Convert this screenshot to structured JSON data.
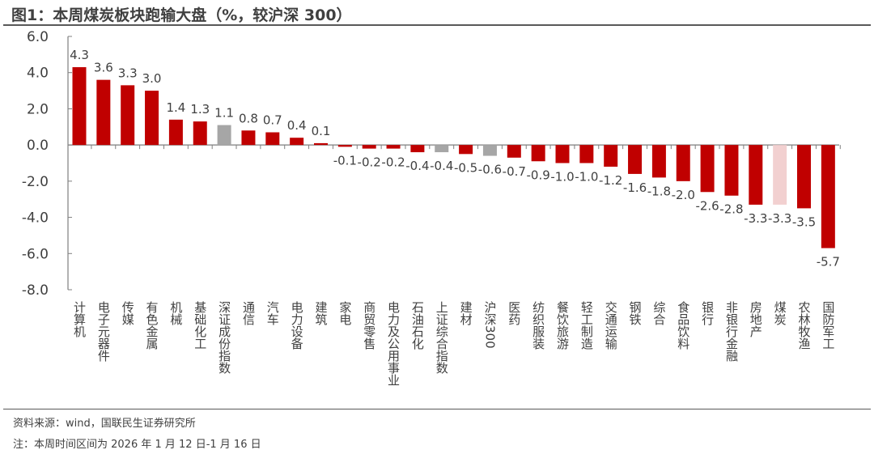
{
  "title": "图1：本周煤炭板块跑输大盘（%，较沪深 300）",
  "source": "资料来源：wind，国联民生证券研究所",
  "note": "注：本周时间区间为 2026 年 1 月 12 日-1 月 16 日",
  "chart_data": {
    "type": "bar",
    "title": "图1：本周煤炭板块跑输大盘（%，较沪深 300）",
    "xlabel": "",
    "ylabel": "",
    "ylim": [
      -8,
      6
    ],
    "yticks": [
      "6.0",
      "4.0",
      "2.0",
      "0.0",
      "-2.0",
      "-4.0",
      "-6.0",
      "-8.0"
    ],
    "grid": false,
    "categories": [
      "计算机",
      "电子元器件",
      "传媒",
      "有色金属",
      "机械",
      "基础化工",
      "深证成份指数",
      "通信",
      "汽车",
      "电力设备",
      "建筑",
      "家电",
      "商贸零售",
      "电力及公用事业",
      "石油石化",
      "上证综合指数",
      "建材",
      "沪深300",
      "医药",
      "纺织服装",
      "餐饮旅游",
      "轻工制造",
      "交通运输",
      "钢铁",
      "综合",
      "食品饮料",
      "银行",
      "非银行金融",
      "房地产",
      "煤炭",
      "农林牧渔",
      "国防军工"
    ],
    "values": [
      4.3,
      3.6,
      3.3,
      3.0,
      1.4,
      1.3,
      1.1,
      0.8,
      0.7,
      0.4,
      0.1,
      -0.1,
      -0.2,
      -0.2,
      -0.4,
      -0.4,
      -0.5,
      -0.6,
      -0.7,
      -0.9,
      -1.0,
      -1.0,
      -1.2,
      -1.6,
      -1.8,
      -2.0,
      -2.6,
      -2.8,
      -3.3,
      -3.3,
      -3.5,
      -5.7
    ],
    "colors": {
      "default": "#c00000",
      "index": "#a6a6a6",
      "highlight": "#f2d0d0"
    },
    "index_categories": [
      "深证成份指数",
      "上证综合指数",
      "沪深300"
    ],
    "highlight_categories": [
      "煤炭"
    ]
  }
}
